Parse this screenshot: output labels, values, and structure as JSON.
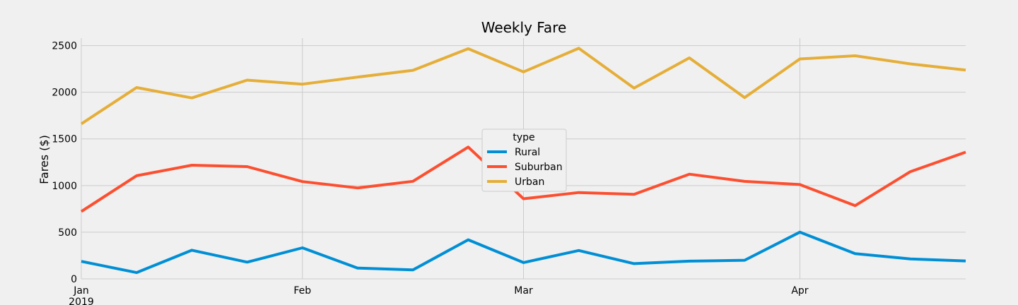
{
  "chart_data": {
    "type": "line",
    "title": "Weekly Fare",
    "xlabel": "",
    "ylabel": "Fares ($)",
    "ylim": [
      0,
      2580
    ],
    "yticks": [
      0,
      500,
      1000,
      1500,
      2000,
      2500
    ],
    "x": [
      "2019-01-06",
      "2019-01-13",
      "2019-01-20",
      "2019-01-27",
      "2019-02-03",
      "2019-02-10",
      "2019-02-17",
      "2019-02-24",
      "2019-03-03",
      "2019-03-10",
      "2019-03-17",
      "2019-03-24",
      "2019-03-31",
      "2019-04-07",
      "2019-04-14",
      "2019-04-21",
      "2019-04-28"
    ],
    "xticks": [
      {
        "date": "2019-01-06",
        "label": "Jan",
        "sublabel": "2019"
      },
      {
        "date": "2019-02-03",
        "label": "Feb",
        "sublabel": ""
      },
      {
        "date": "2019-03-03",
        "label": "Mar",
        "sublabel": ""
      },
      {
        "date": "2019-04-07",
        "label": "Apr",
        "sublabel": ""
      }
    ],
    "series": [
      {
        "name": "Rural",
        "color": "#008fd5",
        "values": [
          187.92,
          67.65,
          306.9,
          179.5,
          333.08,
          115.8,
          95.82,
          419.06,
          175.14,
          303.94,
          163.39,
          189.76,
          199.42,
          501.24,
          269.79,
          214.14,
          191.85
        ]
      },
      {
        "name": "Suburban",
        "color": "#fc4f30",
        "values": [
          721.6,
          1105.13,
          1218.2,
          1203.28,
          1042.79,
          974.34,
          1045.5,
          1412.74,
          858.46,
          925.27,
          906.2,
          1122.2,
          1045.06,
          1010.73,
          784.82,
          1149.27,
          1357.75
        ]
      },
      {
        "name": "Urban",
        "color": "#e5ae38",
        "values": [
          1661.68,
          2050.43,
          1939.02,
          2129.51,
          2086.94,
          2162.64,
          2235.07,
          2466.29,
          2218.2,
          2470.93,
          2044.42,
          2368.37,
          1942.88,
          2356.7,
          2390.72,
          2303.8,
          2238.29
        ]
      }
    ],
    "legend": {
      "title": "type",
      "placement": "center"
    },
    "grid": true
  }
}
